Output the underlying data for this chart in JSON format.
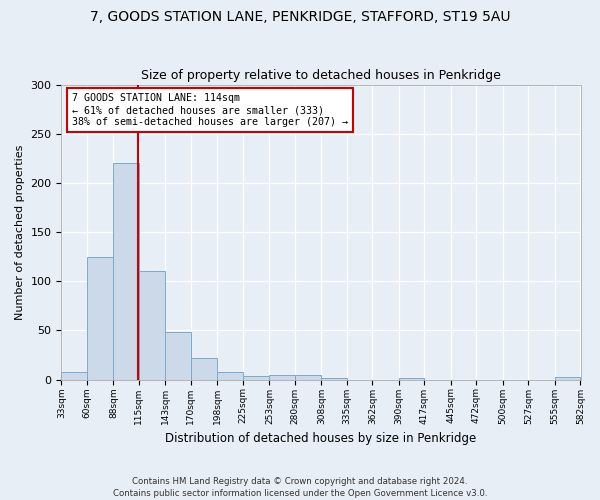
{
  "title_line1": "7, GOODS STATION LANE, PENKRIDGE, STAFFORD, ST19 5AU",
  "title_line2": "Size of property relative to detached houses in Penkridge",
  "xlabel": "Distribution of detached houses by size in Penkridge",
  "ylabel": "Number of detached properties",
  "bar_color": "#ccd9e8",
  "bar_edge_color": "#7baacf",
  "annotation_line": "7 GOODS STATION LANE: 114sqm\n← 61% of detached houses are smaller (333)\n38% of semi-detached houses are larger (207) →",
  "annotation_box_color": "#ffffff",
  "annotation_box_edge": "#cc0000",
  "vline_color": "#cc0000",
  "vline_x": 114,
  "bins": [
    33,
    60,
    88,
    115,
    143,
    170,
    198,
    225,
    253,
    280,
    308,
    335,
    362,
    390,
    417,
    445,
    472,
    500,
    527,
    555,
    582
  ],
  "values": [
    8,
    125,
    220,
    110,
    48,
    22,
    8,
    4,
    5,
    5,
    2,
    0,
    0,
    2,
    0,
    0,
    0,
    0,
    0,
    3
  ],
  "ylim": [
    0,
    300
  ],
  "yticks": [
    0,
    50,
    100,
    150,
    200,
    250,
    300
  ],
  "footer": "Contains HM Land Registry data © Crown copyright and database right 2024.\nContains public sector information licensed under the Open Government Licence v3.0.",
  "background_color": "#e8eef5",
  "plot_background": "#e8eef5",
  "title_fontsize": 10,
  "subtitle_fontsize": 9
}
